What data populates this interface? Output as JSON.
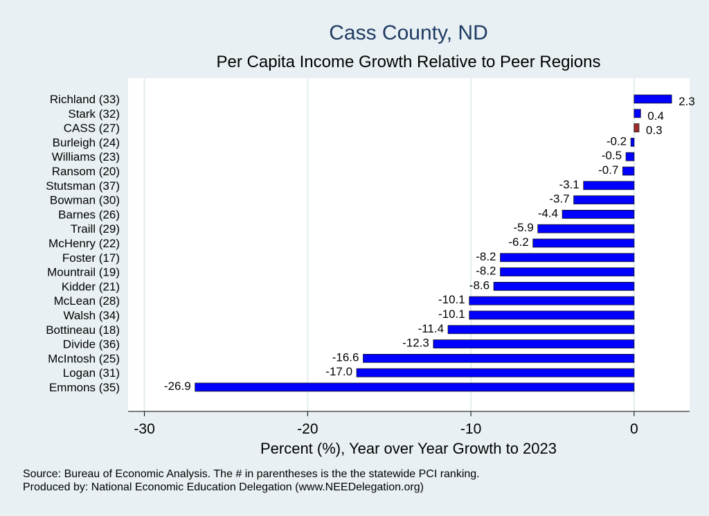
{
  "chart_data": {
    "type": "bar",
    "orientation": "horizontal",
    "title": "Cass County, ND",
    "subtitle": "Per Capita Income Growth Relative to Peer Regions",
    "xlabel": "Percent (%), Year over Year Growth to 2023",
    "xlim": [
      -31,
      3.4
    ],
    "xticks": [
      -30,
      -20,
      -10,
      0
    ],
    "categories": [
      "Richland (33)",
      "Stark (32)",
      "CASS (27)",
      "Burleigh (24)",
      "Williams (23)",
      "Ransom (20)",
      "Stutsman (37)",
      "Bowman (30)",
      "Barnes (26)",
      "Traill (29)",
      "McHenry (22)",
      "Foster (17)",
      "Mountrail (19)",
      "Kidder (21)",
      "McLean (28)",
      "Walsh (34)",
      "Bottineau (18)",
      "Divide (36)",
      "McIntosh (25)",
      "Logan (31)",
      "Emmons (35)"
    ],
    "values": [
      2.3,
      0.4,
      0.3,
      -0.2,
      -0.5,
      -0.7,
      -3.1,
      -3.7,
      -4.4,
      -5.9,
      -6.2,
      -8.2,
      -8.2,
      -8.6,
      -10.1,
      -10.1,
      -11.4,
      -12.3,
      -16.6,
      -17.0,
      -26.9
    ],
    "value_labels": [
      "2.3",
      "0.4",
      "0.3",
      "-0.2",
      "-0.5",
      "-0.7",
      "-3.1",
      "-3.7",
      "-4.4",
      "-5.9",
      "-6.2",
      "-8.2",
      "-8.2",
      "-8.6",
      "-10.1",
      "-10.1",
      "-11.4",
      "-12.3",
      "-16.6",
      "-17.0",
      "-26.9"
    ],
    "highlight": "CASS (27)",
    "grid": true,
    "colors": {
      "bar": "#0000ff",
      "highlight": "#a02c2c",
      "grid": "#e3ecf0",
      "background": "#e9f0f3",
      "plot_background": "#ffffff",
      "title": "#1f3b63"
    }
  },
  "notes": {
    "source": "Source: Bureau of Economic Analysis. The # in parentheses is the the statewide PCI ranking.",
    "produced_by": "Produced by: National Economic Education Delegation (www.NEEDelegation.org)"
  }
}
